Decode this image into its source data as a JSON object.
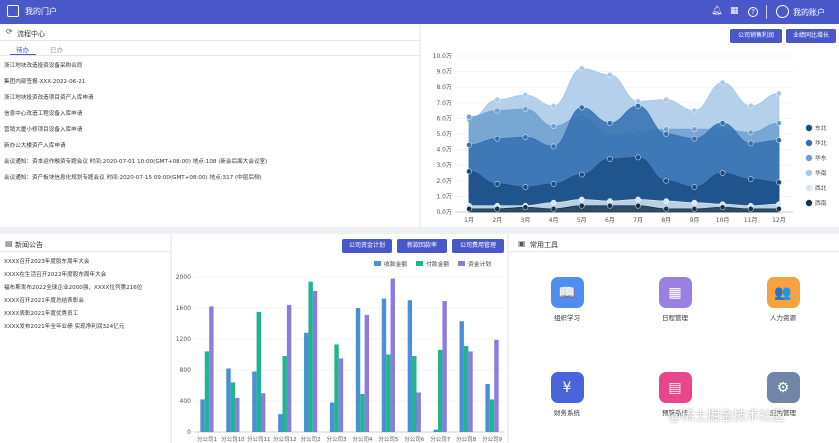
{
  "header": {
    "title": "我的门户",
    "user": "我的账户"
  },
  "process": {
    "title": "流程中心",
    "tabs": [
      "待办",
      "已办"
    ],
    "items": [
      "浙江地块改造投资设备采购合同",
      "集团内部签报-XXX-2022-06-21",
      "浙江地块投资改造项目资产入库申请",
      "信息中心改造工程设备入库申请",
      "营销大厦小修项目设备入库申请",
      "新办公大楼资产入库申请",
      "会议通知：资本运作融资专题会议 时间:2020-07-01 10:00(GMT+08:00) 地点:108 (新会后面大会议室)",
      "会议通知：资产板块信息化规划专题会议 时间:2020-07-15 09:00(GMT+08:00) 地点:317 (中层后侧)"
    ]
  },
  "area_buttons": [
    "公司销售利润",
    "业绩同比增长"
  ],
  "news": {
    "title": "新闻公告",
    "items": [
      "XXXX召开2023年度股东周年大会",
      "XXXX在生活召开2022年度股东周年大会",
      "福布斯发布2022全球企业2000强，XXXX位列第216位",
      "XXXX召开2021年度总结表彰会",
      "XXXX表彰2021年度优秀员工",
      "XXXX发布2021年全年业绩 实现净利润324亿元"
    ]
  },
  "bar_buttons": [
    "公司资金计划",
    "新款回款率",
    "公司费用管理"
  ],
  "tools": {
    "title": "常用工具",
    "items": [
      {
        "label": "组织学习",
        "color": "#4d8ef0",
        "icon": "📖"
      },
      {
        "label": "日程管理",
        "color": "#9a80e2",
        "icon": "▦"
      },
      {
        "label": "人力资源",
        "color": "#f6a23f",
        "icon": "👥"
      },
      {
        "label": "财务系统",
        "color": "#4a63d8",
        "icon": "¥"
      },
      {
        "label": "预算系统",
        "color": "#e8468d",
        "icon": "▤"
      },
      {
        "label": "应用管理",
        "color": "#6f86a6",
        "icon": "⚙"
      }
    ]
  },
  "chart_data": [
    {
      "type": "area",
      "categories": [
        "1月",
        "2月",
        "3月",
        "4月",
        "5月",
        "6月",
        "7月",
        "8月",
        "9月",
        "10月",
        "11月",
        "12月"
      ],
      "ylim": [
        0,
        10
      ],
      "yticks": [
        "0.0万",
        "1.0万",
        "2.0万",
        "3.0万",
        "4.0万",
        "5.0万",
        "6.0万",
        "7.0万",
        "8.0万",
        "9.0万",
        "10.0万"
      ],
      "series": [
        {
          "name": "东北",
          "color": "#1a4d86",
          "values": [
            2.6,
            1.8,
            1.6,
            1.8,
            2.4,
            3.4,
            3.5,
            2.0,
            1.6,
            2.5,
            2.1,
            1.9
          ]
        },
        {
          "name": "华北",
          "color": "#3470b0",
          "values": [
            4.3,
            4.7,
            4.8,
            4.2,
            6.7,
            5.7,
            6.8,
            5.0,
            4.7,
            5.7,
            4.4,
            4.6
          ]
        },
        {
          "name": "华东",
          "color": "#6ea0d0",
          "values": [
            6.1,
            6.5,
            6.6,
            5.5,
            6.1,
            4.9,
            5.1,
            5.3,
            5.3,
            5.3,
            5.1,
            5.7
          ]
        },
        {
          "name": "华南",
          "color": "#a7c8e8",
          "values": [
            5.9,
            7.2,
            7.5,
            6.8,
            9.2,
            8.8,
            7.1,
            7.2,
            6.5,
            8.3,
            6.8,
            7.6
          ]
        },
        {
          "name": "西北",
          "color": "#d6e6f5",
          "values": [
            0.4,
            0.4,
            0.4,
            0.6,
            0.8,
            0.7,
            0.8,
            0.7,
            0.6,
            0.5,
            0.4,
            0.5
          ]
        },
        {
          "name": "西南",
          "color": "#15324f",
          "values": [
            0.2,
            0.2,
            0.3,
            0.2,
            0.4,
            0.4,
            0.4,
            0.2,
            0.2,
            0.3,
            0.2,
            0.2
          ]
        }
      ]
    },
    {
      "type": "bar",
      "categories": [
        "分公司1",
        "分公司10",
        "分公司11",
        "分公司12",
        "分公司2",
        "分公司3",
        "分公司4",
        "分公司5",
        "分公司6",
        "分公司7",
        "分公司8",
        "分公司9"
      ],
      "ylim": [
        0,
        2000
      ],
      "yticks": [
        "0",
        "400",
        "800",
        "1200",
        "1600",
        "2000"
      ],
      "series": [
        {
          "name": "收款金额",
          "color": "#4a90d9",
          "values": [
            420,
            820,
            780,
            230,
            1280,
            380,
            1600,
            1720,
            1700,
            30,
            1430,
            620
          ]
        },
        {
          "name": "付款金额",
          "color": "#1fb58f",
          "values": [
            1040,
            640,
            1550,
            980,
            1940,
            1130,
            490,
            1000,
            980,
            1060,
            1110,
            420
          ]
        },
        {
          "name": "资金计划",
          "color": "#8e7be0",
          "values": [
            1620,
            440,
            500,
            1640,
            1820,
            950,
            1510,
            1980,
            510,
            1690,
            1040,
            1190
          ]
        }
      ]
    }
  ]
}
